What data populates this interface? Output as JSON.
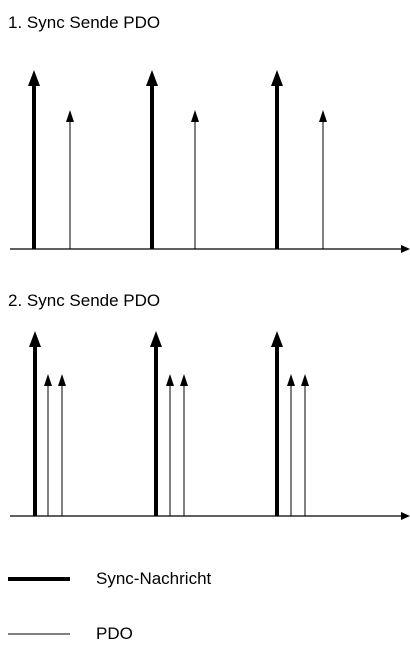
{
  "panels": [
    {
      "title": "1. Sync Sende PDO",
      "pdo_per_sync": 1
    },
    {
      "title": "2. Sync Sende PDO",
      "pdo_per_sync": 2
    }
  ],
  "legend": {
    "sync_label": "Sync-Nachricht",
    "pdo_label": "PDO"
  },
  "colors": {
    "line": "#000000",
    "background": "#ffffff"
  }
}
